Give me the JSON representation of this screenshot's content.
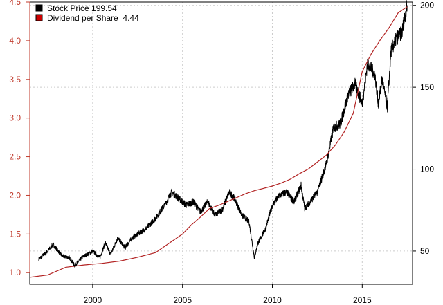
{
  "chart_data": {
    "type": "line",
    "title": "",
    "xlabel": "",
    "ylabel_left": "",
    "ylabel_right": "",
    "xlim": [
      1996.5,
      2017.8
    ],
    "ylim_left": [
      0.85,
      4.5
    ],
    "ylim_right": [
      29.7,
      202
    ],
    "x_ticks": [
      2000,
      2005,
      2010,
      2015
    ],
    "y_left_ticks": [
      1.0,
      1.5,
      2.0,
      2.5,
      3.0,
      3.5,
      4.0,
      4.5
    ],
    "y_left_tick_labels": [
      "1.0",
      "1.5",
      "2.0",
      "2.5",
      "3.0",
      "3.5",
      "4.0",
      "4.5"
    ],
    "y_right_ticks": [
      50,
      100,
      150,
      200
    ],
    "grid": true,
    "legend_position": "top-left",
    "colors": {
      "stock": "#000000",
      "dividend": "#b22222",
      "left_axis": "#c0392b",
      "grid": "#cccccc"
    },
    "series": [
      {
        "name": "Stock Price 199.54",
        "axis": "right",
        "color": "#000000",
        "x": [
          1997.0,
          1997.5,
          1997.8,
          1998.3,
          1998.7,
          1999.0,
          1999.4,
          1999.7,
          2000.0,
          2000.4,
          2000.7,
          2001.0,
          2001.4,
          2001.8,
          2002.2,
          2002.6,
          2003.0,
          2003.5,
          2004.0,
          2004.4,
          2004.8,
          2005.2,
          2005.6,
          2006.0,
          2006.4,
          2006.8,
          2007.2,
          2007.6,
          2007.9,
          2008.3,
          2008.7,
          2009.0,
          2009.2,
          2009.6,
          2010.0,
          2010.4,
          2010.8,
          2011.2,
          2011.6,
          2011.8,
          2012.1,
          2012.5,
          2013.0,
          2013.4,
          2013.8,
          2014.2,
          2014.6,
          2015.0,
          2015.3,
          2015.7,
          2015.9,
          2016.1,
          2016.4,
          2016.6,
          2016.9,
          2017.2,
          2017.5
        ],
        "y": [
          45,
          50,
          54,
          47,
          46,
          41,
          46,
          48,
          50,
          46,
          55,
          48,
          58,
          52,
          58,
          61,
          64,
          70,
          78,
          86,
          82,
          78,
          80,
          74,
          80,
          72,
          75,
          86,
          82,
          72,
          68,
          46,
          55,
          63,
          78,
          84,
          86,
          80,
          90,
          76,
          80,
          86,
          103,
          125,
          128,
          145,
          152,
          140,
          165,
          158,
          140,
          155,
          138,
          172,
          180,
          183,
          200
        ],
        "values_note": ""
      },
      {
        "name": "Dividend per Share  4.44",
        "axis": "left",
        "color": "#b22222",
        "x": [
          1996.5,
          1997.5,
          1998.5,
          1999.5,
          2000.5,
          2001.5,
          2002.5,
          2003.5,
          2004.5,
          2005.0,
          2005.5,
          2006.0,
          2006.5,
          2007.0,
          2007.5,
          2008.0,
          2008.5,
          2009.0,
          2009.5,
          2010.0,
          2010.5,
          2011.0,
          2011.5,
          2012.0,
          2012.5,
          2013.0,
          2013.5,
          2014.0,
          2014.5,
          2015.0,
          2015.5,
          2016.0,
          2016.5,
          2017.0,
          2017.5
        ],
        "y": [
          0.94,
          0.97,
          1.07,
          1.1,
          1.12,
          1.15,
          1.2,
          1.26,
          1.42,
          1.5,
          1.62,
          1.72,
          1.83,
          1.87,
          1.92,
          1.97,
          2.02,
          2.06,
          2.09,
          2.12,
          2.16,
          2.21,
          2.28,
          2.34,
          2.43,
          2.52,
          2.65,
          2.82,
          3.06,
          3.6,
          3.83,
          4.01,
          4.17,
          4.36,
          4.44
        ]
      }
    ]
  },
  "legend": {
    "items": [
      {
        "label": "Stock Price 199.54",
        "color": "#000000"
      },
      {
        "label": "Dividend per Share  4.44",
        "color": "#cc0000"
      }
    ]
  }
}
